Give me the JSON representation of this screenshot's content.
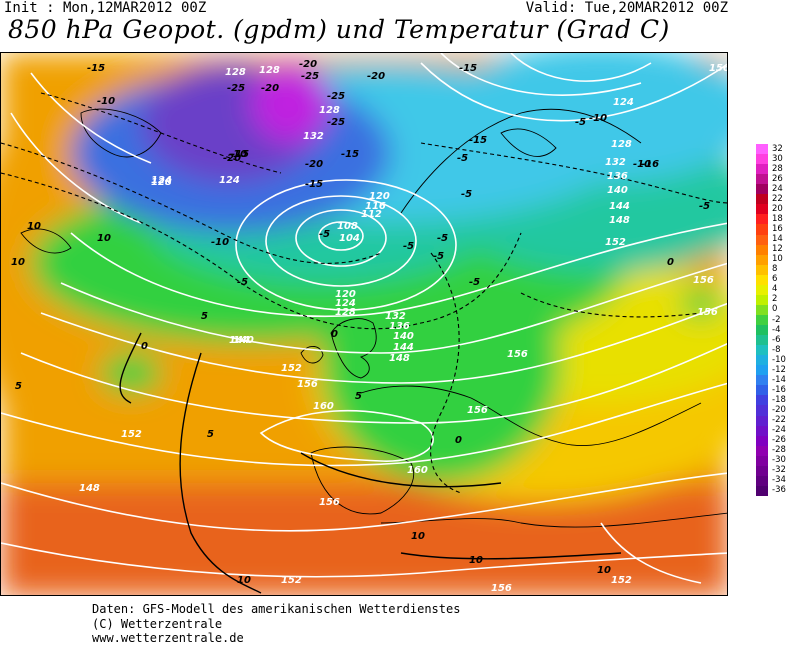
{
  "header": {
    "init": "Init : Mon,12MAR2012 00Z",
    "valid": "Valid: Tue,20MAR2012 00Z",
    "title": "850 hPa Geopot. (gpdm) und Temperatur (Grad C)"
  },
  "map": {
    "geopotential_labels": [
      "128",
      "128",
      "128",
      "132",
      "124",
      "124",
      "128",
      "120",
      "116",
      "112",
      "108",
      "104",
      "120",
      "124",
      "128",
      "132",
      "136",
      "140",
      "144",
      "148",
      "152",
      "156",
      "160",
      "140",
      "144",
      "152",
      "156",
      "160",
      "148",
      "152",
      "156",
      "124",
      "128",
      "132",
      "136",
      "140",
      "144",
      "148",
      "152",
      "156",
      "156",
      "156",
      "156",
      "152",
      "156"
    ],
    "temperature_labels": [
      "-15",
      "-10",
      "-20",
      "-25",
      "-25",
      "-20",
      "-25",
      "-25",
      "-20",
      "-20",
      "-15",
      "-15",
      "-20",
      "-10",
      "-15",
      "-5",
      "-10",
      "-10",
      "-5",
      "-15",
      "-16",
      "-15",
      "-10",
      "-5",
      "-5",
      "-5",
      "-5",
      "-5",
      "-5",
      "-5",
      "-5",
      "0",
      "0",
      "0",
      "0",
      "5",
      "5",
      "5",
      "5",
      "10",
      "10",
      "10",
      "10",
      "10",
      "10",
      "10"
    ],
    "colors": {
      "deep_warm": "#e8641c",
      "warm": "#f0a000",
      "mild": "#f5c800",
      "yellow": "#e8e000",
      "green": "#30d040",
      "cyan_green": "#20c8a0",
      "cyan": "#40c8e8",
      "blue": "#3a70e0",
      "purple": "#6a40c8",
      "magenta": "#c020e0"
    }
  },
  "colorbar": {
    "labels": [
      "32",
      "30",
      "28",
      "26",
      "24",
      "22",
      "20",
      "18",
      "16",
      "14",
      "12",
      "10",
      "8",
      "6",
      "4",
      "2",
      "0",
      "-2",
      "-4",
      "-6",
      "-8",
      "-10",
      "-12",
      "-14",
      "-16",
      "-18",
      "-20",
      "-22",
      "-24",
      "-26",
      "-28",
      "-30",
      "-32",
      "-34",
      "-36"
    ],
    "colors": [
      "#ff60ff",
      "#ff40e0",
      "#e020c0",
      "#c01090",
      "#a00060",
      "#c00020",
      "#e00020",
      "#ff2020",
      "#ff4010",
      "#ff6010",
      "#ff8000",
      "#ffa000",
      "#ffc000",
      "#ffe000",
      "#e8f000",
      "#c0f000",
      "#80e020",
      "#40d040",
      "#20c060",
      "#20c090",
      "#20c0c0",
      "#20b0e0",
      "#20a0f0",
      "#3080f0",
      "#3060e8",
      "#4040e0",
      "#5030d8",
      "#6020d0",
      "#7010c8",
      "#8000c0",
      "#9000b0",
      "#8000a0",
      "#700090",
      "#600080",
      "#500070"
    ]
  },
  "footer": {
    "line1": "Daten: GFS-Modell des amerikanischen Wetterdienstes",
    "line2": "(C) Wetterzentrale",
    "line3": "www.wetterzentrale.de"
  }
}
